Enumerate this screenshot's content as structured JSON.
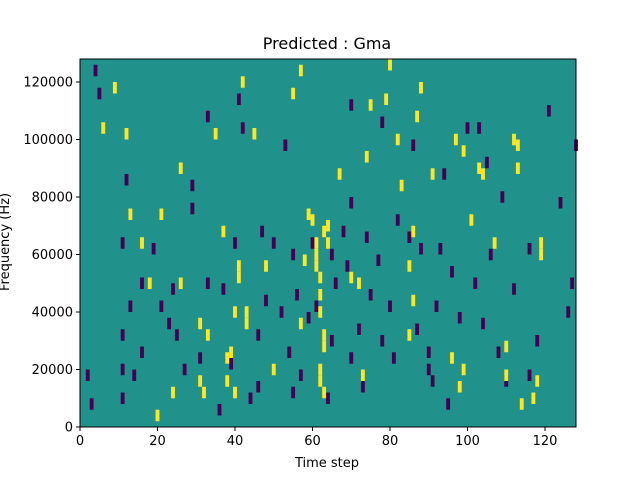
{
  "chart_data": {
    "type": "heatmap",
    "title": "Predicted : Gma",
    "xlabel": "Time step",
    "ylabel": "Frequency (Hz)",
    "xlim": [
      0,
      128
    ],
    "ylim": [
      0,
      128000
    ],
    "x_ticks": [
      0,
      20,
      40,
      60,
      80,
      100,
      120
    ],
    "x_tick_labels": [
      "0",
      "20",
      "40",
      "60",
      "80",
      "100",
      "120"
    ],
    "y_ticks": [
      0,
      20000,
      40000,
      60000,
      80000,
      100000,
      120000
    ],
    "y_tick_labels": [
      "0",
      "20000",
      "40000",
      "60000",
      "80000",
      "100000",
      "120000"
    ],
    "colormap": "viridis",
    "colors": {
      "background": "#21918c",
      "low": "#440154",
      "high": "#fde725"
    },
    "grid": false,
    "background_level": 0.5,
    "bin_height_hz": 4000,
    "cells_high": [
      [
        21,
        72000
      ],
      [
        37,
        66000
      ],
      [
        41,
        54000
      ],
      [
        41,
        50000
      ],
      [
        43,
        38000
      ],
      [
        43,
        34000
      ],
      [
        39,
        24000
      ],
      [
        38,
        22000
      ],
      [
        31,
        14000
      ],
      [
        32,
        10000
      ],
      [
        38,
        14000
      ],
      [
        40,
        10000
      ],
      [
        50,
        18000
      ],
      [
        57,
        34000
      ],
      [
        58,
        56000
      ],
      [
        59,
        72000
      ],
      [
        60,
        70000
      ],
      [
        61,
        62000
      ],
      [
        61,
        58000
      ],
      [
        61,
        54000
      ],
      [
        62,
        50000
      ],
      [
        62,
        44000
      ],
      [
        62,
        38000
      ],
      [
        63,
        30000
      ],
      [
        63,
        26000
      ],
      [
        62,
        18000
      ],
      [
        62,
        14000
      ],
      [
        63,
        10000
      ],
      [
        64,
        68000
      ],
      [
        63,
        66000
      ],
      [
        64,
        62000
      ],
      [
        67,
        86000
      ],
      [
        75,
        110000
      ],
      [
        79,
        112000
      ],
      [
        83,
        82000
      ],
      [
        86,
        66000
      ],
      [
        85,
        54000
      ],
      [
        87,
        106000
      ],
      [
        91,
        86000
      ],
      [
        97,
        98000
      ],
      [
        99,
        94000
      ],
      [
        103,
        88000
      ],
      [
        107,
        62000
      ],
      [
        110,
        16000
      ],
      [
        112,
        98000
      ],
      [
        113,
        88000
      ],
      [
        118,
        14000
      ],
      [
        119,
        58000
      ],
      [
        119,
        62000
      ],
      [
        6,
        102000
      ],
      [
        9,
        116000
      ],
      [
        12,
        100000
      ],
      [
        13,
        72000
      ],
      [
        16,
        62000
      ],
      [
        18,
        48000
      ],
      [
        20,
        2000
      ],
      [
        24,
        10000
      ],
      [
        26,
        48000
      ],
      [
        26,
        88000
      ],
      [
        31,
        34000
      ],
      [
        33,
        30000
      ],
      [
        35,
        100000
      ],
      [
        40,
        38000
      ],
      [
        42,
        118000
      ],
      [
        45,
        100000
      ],
      [
        48,
        54000
      ],
      [
        55,
        114000
      ],
      [
        57,
        122000
      ],
      [
        70,
        50000
      ],
      [
        72,
        48000
      ],
      [
        73,
        16000
      ],
      [
        74,
        92000
      ],
      [
        80,
        126000
      ],
      [
        82,
        98000
      ],
      [
        85,
        30000
      ],
      [
        86,
        42000
      ],
      [
        88,
        116000
      ],
      [
        96,
        22000
      ],
      [
        99,
        18000
      ],
      [
        101,
        70000
      ],
      [
        110,
        26000
      ],
      [
        113,
        96000
      ],
      [
        117,
        8000
      ],
      [
        98,
        12000
      ],
      [
        104,
        86000
      ],
      [
        114,
        6000
      ]
    ],
    "cells_low": [
      [
        4,
        122000
      ],
      [
        5,
        114000
      ],
      [
        2,
        16000
      ],
      [
        3,
        6000
      ],
      [
        11,
        18000
      ],
      [
        11,
        8000
      ],
      [
        11,
        62000
      ],
      [
        12,
        84000
      ],
      [
        11,
        30000
      ],
      [
        13,
        40000
      ],
      [
        16,
        48000
      ],
      [
        16,
        24000
      ],
      [
        19,
        60000
      ],
      [
        21,
        40000
      ],
      [
        23,
        34000
      ],
      [
        24,
        46000
      ],
      [
        25,
        30000
      ],
      [
        27,
        18000
      ],
      [
        29,
        82000
      ],
      [
        29,
        74000
      ],
      [
        31,
        22000
      ],
      [
        33,
        48000
      ],
      [
        33,
        106000
      ],
      [
        37,
        46000
      ],
      [
        40,
        62000
      ],
      [
        41,
        112000
      ],
      [
        42,
        102000
      ],
      [
        46,
        30000
      ],
      [
        46,
        12000
      ],
      [
        47,
        66000
      ],
      [
        48,
        42000
      ],
      [
        50,
        62000
      ],
      [
        52,
        38000
      ],
      [
        53,
        96000
      ],
      [
        54,
        24000
      ],
      [
        55,
        10000
      ],
      [
        55,
        58000
      ],
      [
        56,
        44000
      ],
      [
        57,
        16000
      ],
      [
        59,
        36000
      ],
      [
        60,
        62000
      ],
      [
        61,
        40000
      ],
      [
        65,
        58000
      ],
      [
        65,
        28000
      ],
      [
        66,
        48000
      ],
      [
        68,
        66000
      ],
      [
        69,
        54000
      ],
      [
        70,
        22000
      ],
      [
        70,
        76000
      ],
      [
        70,
        110000
      ],
      [
        72,
        32000
      ],
      [
        73,
        12000
      ],
      [
        74,
        64000
      ],
      [
        75,
        44000
      ],
      [
        77,
        56000
      ],
      [
        78,
        28000
      ],
      [
        78,
        104000
      ],
      [
        80,
        40000
      ],
      [
        81,
        22000
      ],
      [
        82,
        70000
      ],
      [
        85,
        64000
      ],
      [
        86,
        96000
      ],
      [
        87,
        32000
      ],
      [
        90,
        24000
      ],
      [
        90,
        18000
      ],
      [
        91,
        14000
      ],
      [
        92,
        40000
      ],
      [
        93,
        60000
      ],
      [
        94,
        86000
      ],
      [
        96,
        52000
      ],
      [
        98,
        36000
      ],
      [
        100,
        102000
      ],
      [
        102,
        48000
      ],
      [
        104,
        34000
      ],
      [
        106,
        58000
      ],
      [
        108,
        24000
      ],
      [
        109,
        78000
      ],
      [
        110,
        14000
      ],
      [
        112,
        46000
      ],
      [
        116,
        60000
      ],
      [
        118,
        28000
      ],
      [
        121,
        108000
      ],
      [
        124,
        76000
      ],
      [
        126,
        38000
      ],
      [
        127,
        48000
      ],
      [
        128,
        96000
      ],
      [
        116,
        16000
      ],
      [
        105,
        90000
      ],
      [
        103,
        102000
      ],
      [
        95,
        6000
      ],
      [
        14,
        16000
      ],
      [
        39,
        20000
      ],
      [
        88,
        60000
      ],
      [
        44,
        8000
      ],
      [
        36,
        4000
      ],
      [
        64,
        8000
      ]
    ]
  }
}
